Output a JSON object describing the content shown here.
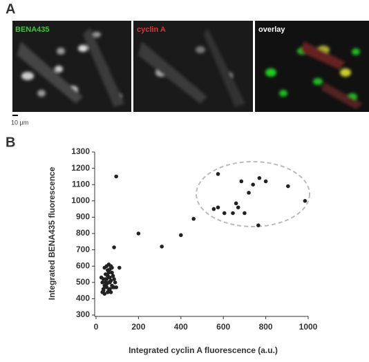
{
  "panel_a": {
    "label": "A",
    "images": [
      "BENA435",
      "cyclin A",
      "overlay"
    ],
    "scale_bar": "10 μm"
  },
  "panel_b_label": "B",
  "chart_data": {
    "type": "scatter",
    "x_label": "Integrated cyclin A fluorescence (a.u.)",
    "y_label": "Integrated BENA435 fluorescence",
    "color": "#222222",
    "x": [
      575,
      555,
      575,
      685,
      740,
      770,
      800,
      905,
      985,
      660,
      670,
      645,
      700,
      605,
      720,
      765,
      460,
      400,
      310,
      200,
      95,
      85,
      30,
      35,
      40,
      45,
      50,
      55,
      60,
      65,
      70,
      50,
      40,
      55,
      75,
      80,
      85,
      90,
      60,
      35,
      45,
      65,
      70,
      30,
      50,
      60,
      75,
      80,
      40,
      55,
      65,
      85,
      110,
      95,
      25,
      70,
      45,
      60,
      50,
      35,
      75,
      65
    ],
    "y": [
      1165,
      950,
      960,
      1120,
      1100,
      1140,
      1120,
      1090,
      1000,
      985,
      960,
      925,
      925,
      925,
      1050,
      850,
      890,
      790,
      720,
      800,
      1150,
      715,
      440,
      460,
      480,
      500,
      520,
      540,
      560,
      580,
      600,
      600,
      590,
      575,
      560,
      540,
      520,
      500,
      500,
      520,
      550,
      530,
      510,
      500,
      470,
      450,
      480,
      470,
      430,
      440,
      460,
      470,
      590,
      470,
      530,
      440,
      520,
      610,
      490,
      450,
      590,
      500
    ],
    "xlim": [
      0,
      1000
    ],
    "xticks": [
      0,
      200,
      400,
      600,
      800,
      1000
    ],
    "ylim": [
      300,
      1300
    ],
    "yticks": [
      300,
      400,
      500,
      600,
      700,
      800,
      900,
      1000,
      1100,
      1200,
      1300
    ]
  }
}
